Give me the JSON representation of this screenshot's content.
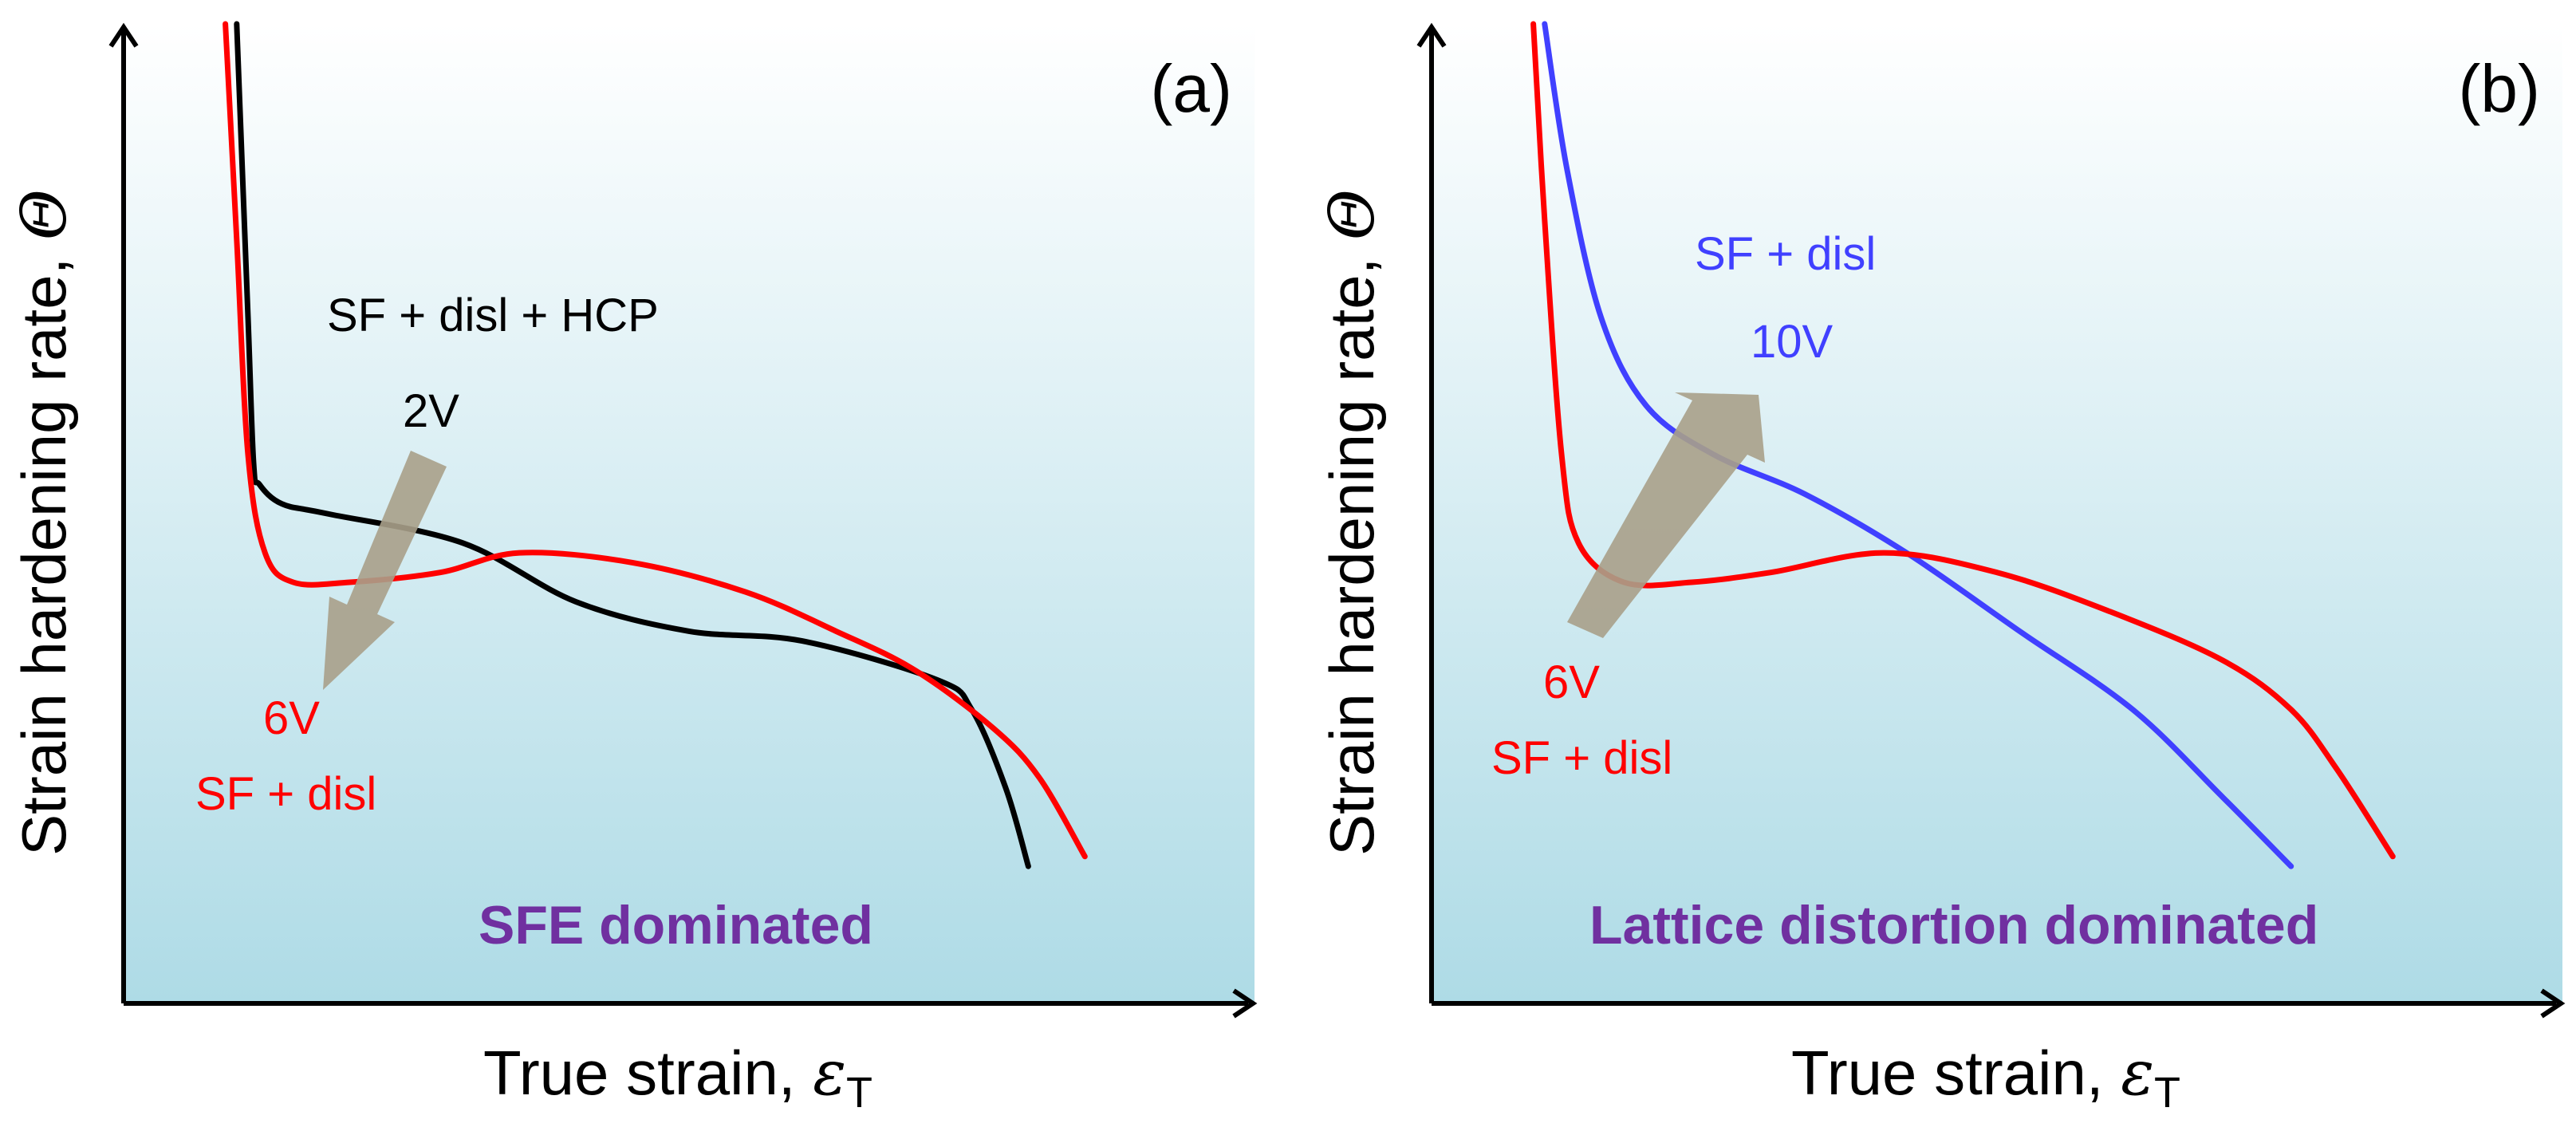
{
  "chart_data": [
    {
      "type": "line",
      "panel_tag": "(a)",
      "xlabel": "True strain, ",
      "xlabel_symbol": "ε",
      "xlabel_subscript": "T",
      "ylabel": "Strain hardening rate, ",
      "ylabel_symbol": "Θ",
      "xlim": [
        0,
        1
      ],
      "ylim": [
        0,
        1
      ],
      "ticks": "none",
      "grid": false,
      "background": "gradient light-to-cyan",
      "series": [
        {
          "name": "2V",
          "color": "#000000",
          "x": [
            0.1,
            0.11,
            0.115,
            0.12,
            0.14,
            0.18,
            0.3,
            0.4,
            0.5,
            0.6,
            0.72,
            0.75,
            0.78,
            0.8
          ],
          "y": [
            1.0,
            0.7,
            0.55,
            0.53,
            0.51,
            0.5,
            0.47,
            0.41,
            0.38,
            0.37,
            0.33,
            0.3,
            0.22,
            0.14
          ]
        },
        {
          "name": "6V",
          "color": "#ff0000",
          "x": [
            0.09,
            0.1,
            0.11,
            0.125,
            0.15,
            0.2,
            0.28,
            0.35,
            0.45,
            0.55,
            0.63,
            0.7,
            0.77,
            0.81,
            0.85
          ],
          "y": [
            1.0,
            0.78,
            0.56,
            0.46,
            0.43,
            0.43,
            0.44,
            0.46,
            0.45,
            0.42,
            0.38,
            0.34,
            0.28,
            0.23,
            0.15
          ]
        }
      ],
      "annotations": [
        {
          "text": "SF + disl + HCP",
          "color": "#000000"
        },
        {
          "text": "2V",
          "color": "#000000"
        },
        {
          "text": "6V",
          "color": "#ff0000"
        },
        {
          "text": "SF + disl",
          "color": "#ff0000"
        },
        {
          "text": "SFE dominated",
          "color": "#7030a0"
        }
      ],
      "arrow": {
        "from": "2V",
        "to": "6V",
        "direction": "down-left",
        "color": "#a8a08a"
      }
    },
    {
      "type": "line",
      "panel_tag": "(b)",
      "xlabel": "True strain, ",
      "xlabel_symbol": "ε",
      "xlabel_subscript": "T",
      "ylabel": "Strain hardening rate, ",
      "ylabel_symbol": "Θ",
      "xlim": [
        0,
        1
      ],
      "ylim": [
        0,
        1
      ],
      "ticks": "none",
      "grid": false,
      "background": "gradient light-to-cyan",
      "series": [
        {
          "name": "10V",
          "color": "#4040ff",
          "x": [
            0.1,
            0.12,
            0.15,
            0.19,
            0.25,
            0.33,
            0.42,
            0.52,
            0.62,
            0.7,
            0.76
          ],
          "y": [
            1.0,
            0.85,
            0.7,
            0.61,
            0.56,
            0.52,
            0.46,
            0.38,
            0.3,
            0.21,
            0.14
          ]
        },
        {
          "name": "6V",
          "color": "#ff0000",
          "x": [
            0.09,
            0.1,
            0.115,
            0.13,
            0.17,
            0.23,
            0.3,
            0.4,
            0.5,
            0.6,
            0.7,
            0.76,
            0.8,
            0.85
          ],
          "y": [
            1.0,
            0.8,
            0.56,
            0.47,
            0.43,
            0.43,
            0.44,
            0.46,
            0.44,
            0.4,
            0.35,
            0.3,
            0.24,
            0.15
          ]
        }
      ],
      "annotations": [
        {
          "text": "SF + disl",
          "color": "#4040ff"
        },
        {
          "text": "10V",
          "color": "#4040ff"
        },
        {
          "text": "6V",
          "color": "#ff0000"
        },
        {
          "text": "SF + disl",
          "color": "#ff0000"
        },
        {
          "text": "Lattice distortion dominated",
          "color": "#7030a0"
        }
      ],
      "arrow": {
        "from": "6V",
        "to": "10V",
        "direction": "up-right",
        "color": "#a8a08a"
      }
    }
  ]
}
